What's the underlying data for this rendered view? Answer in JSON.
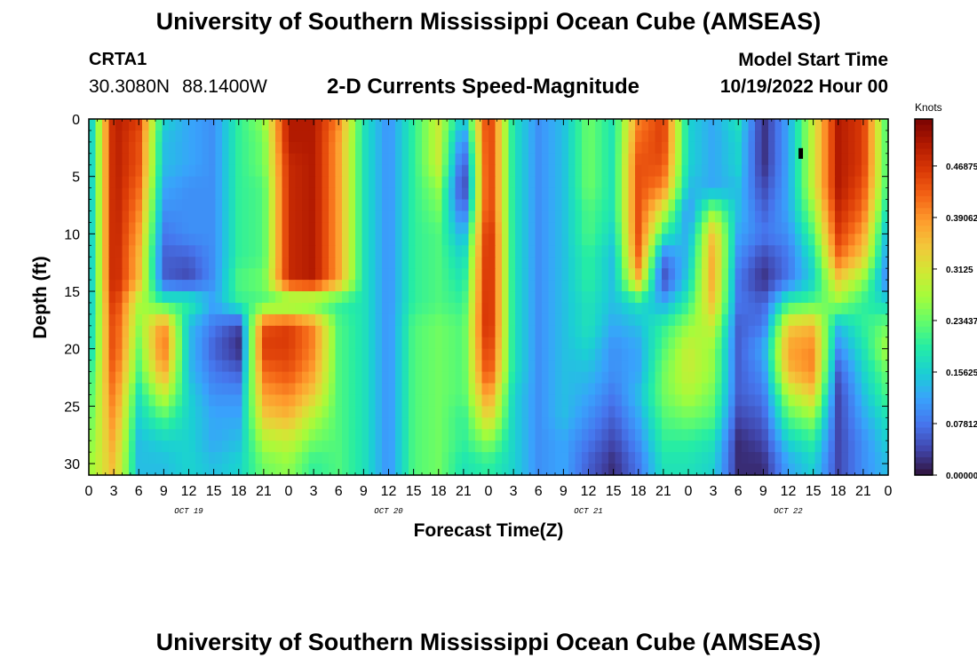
{
  "header": {
    "title": "University of Southern Mississippi Ocean Cube (AMSEAS)",
    "station": "CRTA1",
    "lat": "30.3080N",
    "lon": "88.1400W",
    "model_start_label": "Model Start Time",
    "model_start_value": "10/19/2022 Hour 00"
  },
  "footer": {
    "title": "University of Southern Mississippi Ocean Cube (AMSEAS)"
  },
  "colors": {
    "palette": [
      "#30123b",
      "#4145ab",
      "#4675ed",
      "#39a2fc",
      "#1bcfd4",
      "#24eca6",
      "#61fc6c",
      "#a4fc3b",
      "#d1e834",
      "#f3c63a",
      "#fe9b2d",
      "#f36315",
      "#d93806",
      "#b11901",
      "#7a0402"
    ]
  },
  "chart_data": {
    "type": "heatmap",
    "title": "2-D Currents Speed-Magnitude",
    "xlabel": "Forecast Time(Z)",
    "ylabel": "Depth (ft)",
    "colorbar_label": "Knots",
    "x_range_hours": [
      0,
      96
    ],
    "y_range_ft": [
      0,
      31
    ],
    "x_ticks": [
      "0",
      "3",
      "6",
      "9",
      "12",
      "15",
      "18",
      "21",
      "0",
      "3",
      "6",
      "9",
      "12",
      "15",
      "18",
      "21",
      "0",
      "3",
      "6",
      "9",
      "12",
      "15",
      "18",
      "21",
      "0",
      "3",
      "6",
      "9",
      "12",
      "15",
      "18",
      "21",
      "0"
    ],
    "day_labels": [
      "OCT 19",
      "OCT 20",
      "OCT 21",
      "OCT 22"
    ],
    "y_ticks": [
      "0",
      "5",
      "10",
      "15",
      "20",
      "25",
      "30"
    ],
    "colorbar_ticks": [
      "0.46875",
      "0.390625",
      "0.3125",
      "0.234375",
      "0.15625",
      "0.078125",
      "0.000000"
    ],
    "colorbar_range": [
      0,
      0.54
    ],
    "rows_depth_ft": [
      0,
      2,
      4,
      6,
      8,
      10,
      12,
      14,
      16,
      18,
      20,
      22,
      24,
      26,
      28,
      30
    ],
    "cols_hour": [
      0,
      3,
      6,
      9,
      12,
      15,
      18,
      21,
      24,
      27,
      30,
      33,
      36,
      39,
      42,
      45,
      48,
      51,
      54,
      57,
      60,
      63,
      66,
      69,
      72,
      75,
      78,
      81,
      84,
      87,
      90,
      93,
      96
    ],
    "values": [
      [
        0.12,
        0.5,
        0.46,
        0.16,
        0.12,
        0.1,
        0.2,
        0.26,
        0.5,
        0.5,
        0.4,
        0.18,
        0.1,
        0.2,
        0.3,
        0.14,
        0.48,
        0.18,
        0.1,
        0.14,
        0.24,
        0.18,
        0.4,
        0.46,
        0.16,
        0.12,
        0.18,
        0.02,
        0.12,
        0.3,
        0.5,
        0.46,
        0.2
      ],
      [
        0.12,
        0.5,
        0.44,
        0.14,
        0.12,
        0.1,
        0.2,
        0.24,
        0.5,
        0.5,
        0.38,
        0.18,
        0.1,
        0.2,
        0.3,
        0.08,
        0.48,
        0.18,
        0.1,
        0.14,
        0.24,
        0.18,
        0.42,
        0.46,
        0.16,
        0.12,
        0.16,
        0.02,
        0.12,
        0.3,
        0.5,
        0.46,
        0.2
      ],
      [
        0.12,
        0.5,
        0.44,
        0.14,
        0.12,
        0.1,
        0.2,
        0.24,
        0.48,
        0.5,
        0.38,
        0.18,
        0.1,
        0.2,
        0.3,
        0.04,
        0.48,
        0.18,
        0.1,
        0.14,
        0.24,
        0.18,
        0.44,
        0.44,
        0.16,
        0.12,
        0.16,
        0.02,
        0.12,
        0.3,
        0.5,
        0.46,
        0.2
      ],
      [
        0.12,
        0.5,
        0.42,
        0.12,
        0.1,
        0.1,
        0.2,
        0.22,
        0.48,
        0.5,
        0.38,
        0.18,
        0.1,
        0.2,
        0.26,
        0.02,
        0.48,
        0.18,
        0.1,
        0.14,
        0.24,
        0.18,
        0.44,
        0.4,
        0.14,
        0.12,
        0.14,
        0.04,
        0.12,
        0.3,
        0.5,
        0.44,
        0.2
      ],
      [
        0.12,
        0.5,
        0.4,
        0.1,
        0.1,
        0.1,
        0.2,
        0.22,
        0.48,
        0.5,
        0.38,
        0.18,
        0.1,
        0.2,
        0.24,
        0.06,
        0.48,
        0.18,
        0.1,
        0.14,
        0.22,
        0.18,
        0.44,
        0.3,
        0.1,
        0.26,
        0.14,
        0.06,
        0.12,
        0.26,
        0.48,
        0.42,
        0.16
      ],
      [
        0.12,
        0.5,
        0.38,
        0.08,
        0.1,
        0.1,
        0.2,
        0.22,
        0.48,
        0.5,
        0.38,
        0.18,
        0.1,
        0.2,
        0.22,
        0.12,
        0.5,
        0.18,
        0.1,
        0.14,
        0.22,
        0.16,
        0.44,
        0.2,
        0.12,
        0.36,
        0.12,
        0.08,
        0.1,
        0.22,
        0.46,
        0.38,
        0.12
      ],
      [
        0.12,
        0.5,
        0.36,
        0.06,
        0.06,
        0.1,
        0.2,
        0.22,
        0.48,
        0.5,
        0.38,
        0.18,
        0.1,
        0.2,
        0.22,
        0.16,
        0.5,
        0.18,
        0.1,
        0.14,
        0.2,
        0.14,
        0.42,
        0.08,
        0.14,
        0.38,
        0.1,
        0.04,
        0.08,
        0.18,
        0.42,
        0.34,
        0.1
      ],
      [
        0.12,
        0.5,
        0.36,
        0.06,
        0.04,
        0.1,
        0.22,
        0.24,
        0.48,
        0.5,
        0.38,
        0.18,
        0.1,
        0.2,
        0.22,
        0.18,
        0.5,
        0.18,
        0.1,
        0.14,
        0.2,
        0.14,
        0.36,
        0.04,
        0.16,
        0.38,
        0.08,
        0.02,
        0.08,
        0.16,
        0.34,
        0.26,
        0.08
      ],
      [
        0.12,
        0.48,
        0.28,
        0.2,
        0.2,
        0.12,
        0.2,
        0.22,
        0.22,
        0.22,
        0.2,
        0.18,
        0.1,
        0.2,
        0.22,
        0.2,
        0.5,
        0.18,
        0.1,
        0.14,
        0.18,
        0.14,
        0.18,
        0.12,
        0.2,
        0.36,
        0.08,
        0.06,
        0.2,
        0.22,
        0.26,
        0.2,
        0.16
      ],
      [
        0.14,
        0.46,
        0.26,
        0.4,
        0.14,
        0.08,
        0.04,
        0.44,
        0.46,
        0.4,
        0.22,
        0.18,
        0.1,
        0.22,
        0.24,
        0.22,
        0.5,
        0.18,
        0.1,
        0.14,
        0.18,
        0.12,
        0.14,
        0.2,
        0.26,
        0.3,
        0.06,
        0.08,
        0.34,
        0.36,
        0.14,
        0.2,
        0.24
      ],
      [
        0.14,
        0.46,
        0.24,
        0.42,
        0.14,
        0.06,
        0.02,
        0.46,
        0.46,
        0.4,
        0.22,
        0.18,
        0.1,
        0.22,
        0.24,
        0.22,
        0.48,
        0.18,
        0.1,
        0.14,
        0.16,
        0.1,
        0.12,
        0.22,
        0.3,
        0.26,
        0.06,
        0.12,
        0.38,
        0.4,
        0.1,
        0.18,
        0.28
      ],
      [
        0.18,
        0.44,
        0.22,
        0.38,
        0.14,
        0.08,
        0.06,
        0.42,
        0.44,
        0.38,
        0.22,
        0.18,
        0.1,
        0.22,
        0.24,
        0.22,
        0.46,
        0.18,
        0.1,
        0.14,
        0.14,
        0.1,
        0.12,
        0.24,
        0.3,
        0.26,
        0.06,
        0.1,
        0.36,
        0.4,
        0.06,
        0.16,
        0.24
      ],
      [
        0.2,
        0.42,
        0.18,
        0.3,
        0.16,
        0.1,
        0.1,
        0.38,
        0.4,
        0.34,
        0.22,
        0.18,
        0.1,
        0.22,
        0.24,
        0.22,
        0.4,
        0.16,
        0.1,
        0.14,
        0.12,
        0.08,
        0.14,
        0.24,
        0.28,
        0.24,
        0.06,
        0.08,
        0.28,
        0.34,
        0.04,
        0.14,
        0.22
      ],
      [
        0.22,
        0.4,
        0.16,
        0.22,
        0.16,
        0.12,
        0.12,
        0.34,
        0.36,
        0.28,
        0.22,
        0.18,
        0.1,
        0.22,
        0.24,
        0.2,
        0.34,
        0.16,
        0.1,
        0.14,
        0.1,
        0.06,
        0.12,
        0.22,
        0.24,
        0.22,
        0.04,
        0.06,
        0.22,
        0.26,
        0.04,
        0.12,
        0.18
      ],
      [
        0.24,
        0.38,
        0.14,
        0.16,
        0.16,
        0.12,
        0.14,
        0.28,
        0.3,
        0.24,
        0.22,
        0.18,
        0.1,
        0.22,
        0.24,
        0.2,
        0.26,
        0.16,
        0.1,
        0.12,
        0.08,
        0.04,
        0.1,
        0.2,
        0.2,
        0.18,
        0.02,
        0.04,
        0.16,
        0.2,
        0.04,
        0.1,
        0.16
      ],
      [
        0.26,
        0.36,
        0.14,
        0.14,
        0.16,
        0.14,
        0.16,
        0.24,
        0.26,
        0.2,
        0.22,
        0.18,
        0.1,
        0.22,
        0.24,
        0.18,
        0.2,
        0.16,
        0.1,
        0.12,
        0.06,
        0.02,
        0.08,
        0.18,
        0.18,
        0.16,
        0.02,
        0.02,
        0.12,
        0.16,
        0.04,
        0.1,
        0.14
      ]
    ],
    "marker": {
      "hour": 85.5,
      "depth_ft": 3
    }
  }
}
